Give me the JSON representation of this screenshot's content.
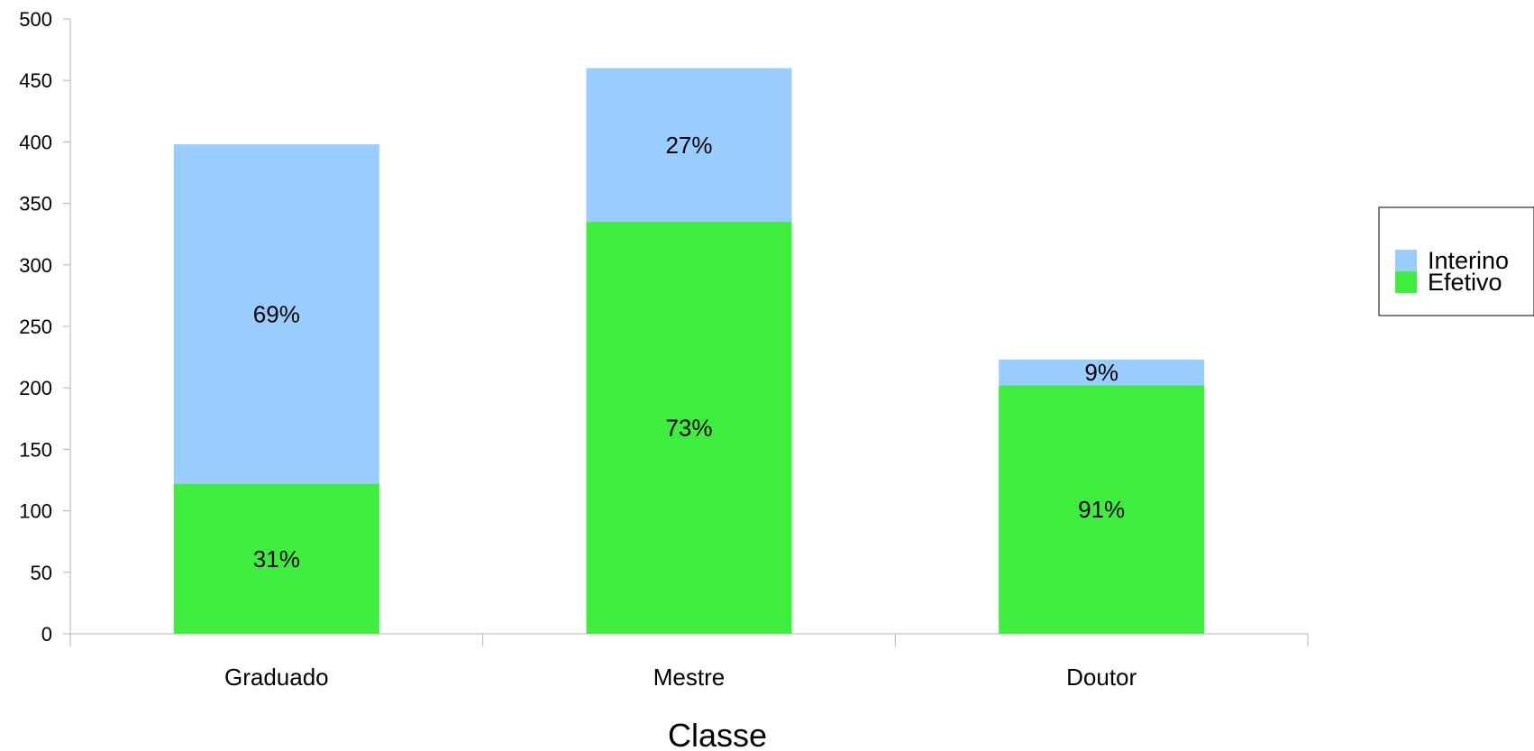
{
  "chart_data": {
    "type": "bar",
    "stacked": true,
    "categories": [
      "Graduado",
      "Mestre",
      "Doutor"
    ],
    "series": [
      {
        "name": "Efetivo",
        "color": "#3fed3f",
        "values": [
          122,
          335,
          202
        ],
        "labels": [
          "31%",
          "73%",
          "91%"
        ]
      },
      {
        "name": "Interino",
        "color": "#99ccff",
        "values": [
          276,
          125,
          21
        ],
        "labels": [
          "69%",
          "27%",
          "9%"
        ]
      }
    ],
    "title": "",
    "xlabel": "Classe",
    "ylabel": "",
    "ylim": [
      0,
      500
    ],
    "yticks": [
      0,
      50,
      100,
      150,
      200,
      250,
      300,
      350,
      400,
      450,
      500
    ],
    "grid": false,
    "legend": {
      "position": "right",
      "items": [
        "Interino",
        "Efetivo"
      ]
    }
  }
}
